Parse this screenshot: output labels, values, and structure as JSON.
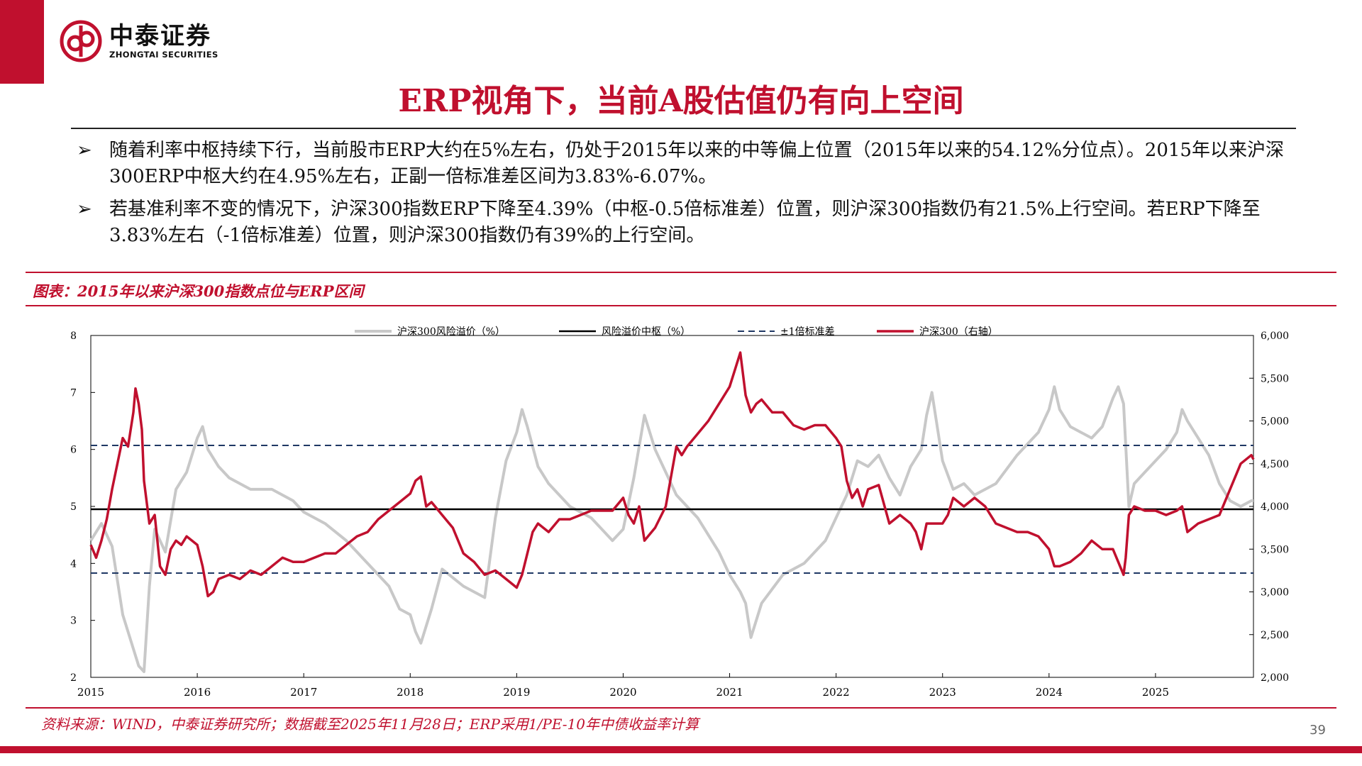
{
  "brand": {
    "name_cn": "中泰证券",
    "name_en": "ZHONGTAI SECURITIES",
    "color": "#c0102e"
  },
  "slide": {
    "title": "ERP视角下，当前A股估值仍有向上空间",
    "bullets": [
      "随着利率中枢持续下行，当前股市ERP大约在5%左右，仍处于2015年以来的中等偏上位置（2015年以来的54.12%分位点）。2015年以来沪深300ERP中枢大约在4.95%左右，正副一倍标准差区间为3.83%-6.07%。",
      "若基准利率不变的情况下，沪深300指数ERP下降至4.39%（中枢-0.5倍标准差）位置，则沪深300指数仍有21.5%上行空间。若ERP下降至3.83%左右（-1倍标准差）位置，则沪深300指数仍有39%的上行空间。"
    ],
    "bullet_marker": "➢",
    "figure_caption": "图表：2015年以来沪深300指数点位与ERP区间",
    "source": "资料来源：WIND，中泰证券研究所；数据截至2025年11月28日；ERP采用1/PE-10年中债收益率计算",
    "page_number": "39"
  },
  "chart_data": {
    "type": "line",
    "legend_position": "top",
    "grid": false,
    "x_ticks": [
      "2015",
      "2016",
      "2017",
      "2018",
      "2019",
      "2020",
      "2021",
      "2022",
      "2023",
      "2024",
      "2025"
    ],
    "x_range": [
      2015.0,
      2025.92
    ],
    "y_left": {
      "range": [
        2,
        8
      ],
      "ticks": [
        "2",
        "3",
        "4",
        "5",
        "6",
        "7",
        "8"
      ]
    },
    "y_right": {
      "range": [
        2000,
        6000
      ],
      "ticks": [
        "2,000",
        "2,500",
        "3,000",
        "3,500",
        "4,000",
        "4,500",
        "5,000",
        "5,500",
        "6,000"
      ]
    },
    "series": [
      {
        "name": "沪深300风险溢价（%）",
        "axis": "left",
        "color": "#c8c8c8",
        "style": "solid",
        "x": [
          2015.0,
          2015.1,
          2015.2,
          2015.3,
          2015.4,
          2015.45,
          2015.5,
          2015.55,
          2015.6,
          2015.7,
          2015.8,
          2015.9,
          2016.0,
          2016.05,
          2016.1,
          2016.2,
          2016.3,
          2016.5,
          2016.7,
          2016.9,
          2017.0,
          2017.2,
          2017.4,
          2017.6,
          2017.8,
          2017.9,
          2018.0,
          2018.05,
          2018.1,
          2018.2,
          2018.3,
          2018.5,
          2018.7,
          2018.8,
          2018.9,
          2019.0,
          2019.05,
          2019.1,
          2019.2,
          2019.3,
          2019.5,
          2019.7,
          2019.9,
          2020.0,
          2020.1,
          2020.2,
          2020.3,
          2020.5,
          2020.7,
          2020.9,
          2021.0,
          2021.1,
          2021.15,
          2021.2,
          2021.3,
          2021.5,
          2021.7,
          2021.9,
          2022.0,
          2022.1,
          2022.2,
          2022.3,
          2022.4,
          2022.5,
          2022.6,
          2022.7,
          2022.8,
          2022.85,
          2022.9,
          2023.0,
          2023.1,
          2023.2,
          2023.3,
          2023.5,
          2023.7,
          2023.9,
          2024.0,
          2024.05,
          2024.1,
          2024.2,
          2024.3,
          2024.4,
          2024.5,
          2024.6,
          2024.65,
          2024.7,
          2024.75,
          2024.8,
          2024.9,
          2025.0,
          2025.1,
          2025.2,
          2025.25,
          2025.3,
          2025.4,
          2025.5,
          2025.6,
          2025.7,
          2025.8,
          2025.9,
          2025.92
        ],
        "y": [
          4.4,
          4.7,
          4.3,
          3.1,
          2.5,
          2.2,
          2.1,
          3.6,
          4.6,
          4.2,
          5.3,
          5.6,
          6.2,
          6.4,
          6.0,
          5.7,
          5.5,
          5.3,
          5.3,
          5.1,
          4.9,
          4.7,
          4.4,
          4.0,
          3.6,
          3.2,
          3.1,
          2.8,
          2.6,
          3.2,
          3.9,
          3.6,
          3.4,
          4.8,
          5.8,
          6.3,
          6.7,
          6.4,
          5.7,
          5.4,
          5.0,
          4.8,
          4.4,
          4.6,
          5.5,
          6.6,
          6.0,
          5.2,
          4.8,
          4.2,
          3.8,
          3.5,
          3.3,
          2.7,
          3.3,
          3.8,
          4.0,
          4.4,
          4.8,
          5.2,
          5.8,
          5.7,
          5.9,
          5.5,
          5.2,
          5.7,
          6.0,
          6.6,
          7.0,
          5.8,
          5.3,
          5.4,
          5.2,
          5.4,
          5.9,
          6.3,
          6.7,
          7.1,
          6.7,
          6.4,
          6.3,
          6.2,
          6.4,
          6.9,
          7.1,
          6.8,
          5.0,
          5.4,
          5.6,
          5.8,
          6.0,
          6.3,
          6.7,
          6.5,
          6.2,
          5.9,
          5.4,
          5.1,
          5.0,
          5.1,
          5.1
        ]
      },
      {
        "name": "风险溢价中枢（%）",
        "axis": "left",
        "color": "#000000",
        "style": "solid",
        "value": 4.95
      },
      {
        "name": "±1倍标准差",
        "axis": "left",
        "color": "#1f3864",
        "style": "dashed",
        "values": [
          3.83,
          6.07
        ]
      },
      {
        "name": "沪深300（右轴）",
        "axis": "right",
        "color": "#c0102e",
        "style": "solid",
        "x": [
          2015.0,
          2015.05,
          2015.1,
          2015.15,
          2015.2,
          2015.3,
          2015.35,
          2015.4,
          2015.42,
          2015.45,
          2015.48,
          2015.5,
          2015.55,
          2015.6,
          2015.65,
          2015.7,
          2015.75,
          2015.8,
          2015.85,
          2015.9,
          2016.0,
          2016.05,
          2016.1,
          2016.15,
          2016.2,
          2016.3,
          2016.4,
          2016.5,
          2016.6,
          2016.7,
          2016.8,
          2016.9,
          2017.0,
          2017.1,
          2017.2,
          2017.3,
          2017.4,
          2017.5,
          2017.6,
          2017.7,
          2017.8,
          2017.9,
          2018.0,
          2018.05,
          2018.1,
          2018.15,
          2018.2,
          2018.3,
          2018.4,
          2018.5,
          2018.6,
          2018.7,
          2018.8,
          2018.9,
          2019.0,
          2019.05,
          2019.1,
          2019.15,
          2019.2,
          2019.3,
          2019.4,
          2019.5,
          2019.6,
          2019.7,
          2019.8,
          2019.9,
          2020.0,
          2020.05,
          2020.1,
          2020.15,
          2020.2,
          2020.3,
          2020.4,
          2020.5,
          2020.55,
          2020.6,
          2020.7,
          2020.8,
          2020.9,
          2021.0,
          2021.05,
          2021.1,
          2021.12,
          2021.15,
          2021.2,
          2021.25,
          2021.3,
          2021.4,
          2021.5,
          2021.6,
          2021.7,
          2021.8,
          2021.9,
          2022.0,
          2022.05,
          2022.1,
          2022.15,
          2022.2,
          2022.25,
          2022.3,
          2022.4,
          2022.5,
          2022.6,
          2022.7,
          2022.75,
          2022.8,
          2022.85,
          2022.9,
          2023.0,
          2023.05,
          2023.1,
          2023.2,
          2023.3,
          2023.4,
          2023.5,
          2023.6,
          2023.7,
          2023.8,
          2023.9,
          2024.0,
          2024.05,
          2024.1,
          2024.2,
          2024.3,
          2024.4,
          2024.5,
          2024.6,
          2024.65,
          2024.7,
          2024.72,
          2024.75,
          2024.8,
          2024.9,
          2025.0,
          2025.1,
          2025.2,
          2025.25,
          2025.3,
          2025.4,
          2025.5,
          2025.6,
          2025.7,
          2025.8,
          2025.9,
          2025.92
        ],
        "y": [
          3550,
          3400,
          3600,
          3850,
          4200,
          4800,
          4700,
          5100,
          5380,
          5200,
          4900,
          4300,
          3800,
          3900,
          3300,
          3200,
          3500,
          3600,
          3550,
          3650,
          3550,
          3300,
          2950,
          3000,
          3150,
          3200,
          3150,
          3250,
          3200,
          3300,
          3400,
          3350,
          3350,
          3400,
          3450,
          3450,
          3550,
          3650,
          3700,
          3850,
          3950,
          4050,
          4150,
          4300,
          4350,
          4000,
          4050,
          3900,
          3750,
          3450,
          3350,
          3200,
          3250,
          3150,
          3050,
          3200,
          3450,
          3700,
          3800,
          3700,
          3850,
          3850,
          3900,
          3950,
          3950,
          3950,
          4100,
          3900,
          3800,
          4000,
          3600,
          3750,
          4000,
          4700,
          4600,
          4700,
          4850,
          5000,
          5200,
          5400,
          5600,
          5800,
          5600,
          5300,
          5100,
          5200,
          5250,
          5100,
          5100,
          4950,
          4900,
          4950,
          4950,
          4800,
          4700,
          4300,
          4100,
          4200,
          4000,
          4200,
          4250,
          3800,
          3900,
          3800,
          3700,
          3500,
          3800,
          3800,
          3800,
          3900,
          4100,
          4000,
          4100,
          4000,
          3800,
          3750,
          3700,
          3700,
          3650,
          3500,
          3300,
          3300,
          3350,
          3450,
          3600,
          3500,
          3500,
          3350,
          3200,
          3400,
          3900,
          4000,
          3950,
          3950,
          3900,
          3950,
          4000,
          3700,
          3800,
          3850,
          3900,
          4200,
          4500,
          4600,
          4550
        ]
      }
    ]
  }
}
